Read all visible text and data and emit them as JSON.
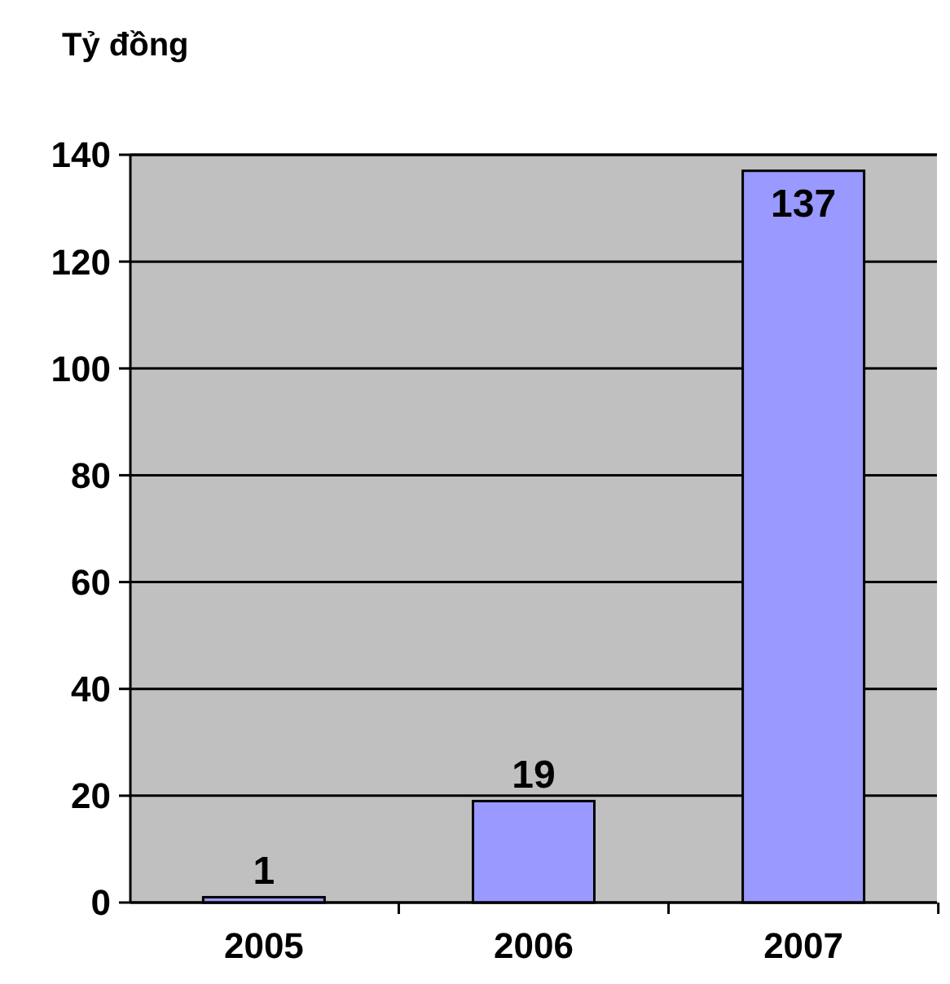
{
  "chart_data": {
    "type": "bar",
    "ylabel": "Tỷ đồng",
    "categories": [
      "2005",
      "2006",
      "2007"
    ],
    "values": [
      1,
      19,
      137
    ],
    "color": "#9999ff",
    "ylim": [
      0,
      140
    ],
    "yticks": [
      0,
      20,
      40,
      60,
      80,
      100,
      120,
      140
    ],
    "grid": "y",
    "data_labels": true
  }
}
